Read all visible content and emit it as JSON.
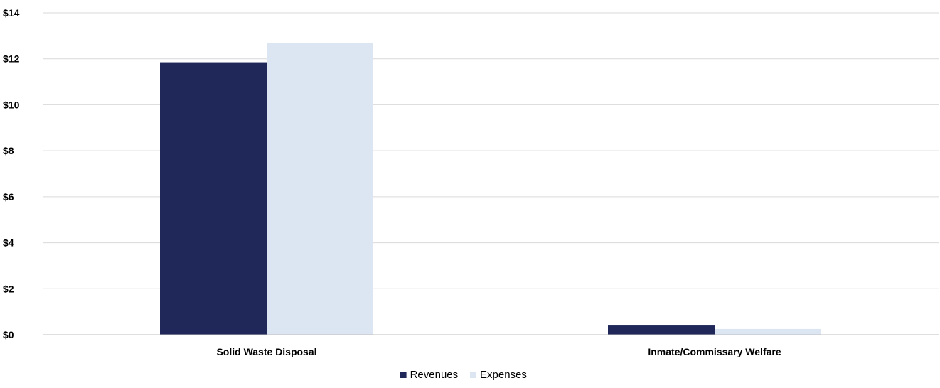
{
  "chart_data": {
    "type": "bar",
    "categories": [
      "Solid Waste Disposal",
      "Inmate/Commissary Welfare"
    ],
    "series": [
      {
        "name": "Revenues",
        "values": [
          11.85,
          0.4
        ],
        "color": "#1f2858"
      },
      {
        "name": "Expenses",
        "values": [
          12.7,
          0.25
        ],
        "color": "#dce6f2"
      }
    ],
    "ylim": [
      0,
      14
    ],
    "yticks": [
      0,
      2,
      4,
      6,
      8,
      10,
      12,
      14
    ],
    "ytick_labels": [
      "$0",
      "$2",
      "$4",
      "$6",
      "$8",
      "$10",
      "$12",
      "$14"
    ],
    "grid": true,
    "gridline_color": "#d9d9d9",
    "legend_position": "bottom-center"
  }
}
